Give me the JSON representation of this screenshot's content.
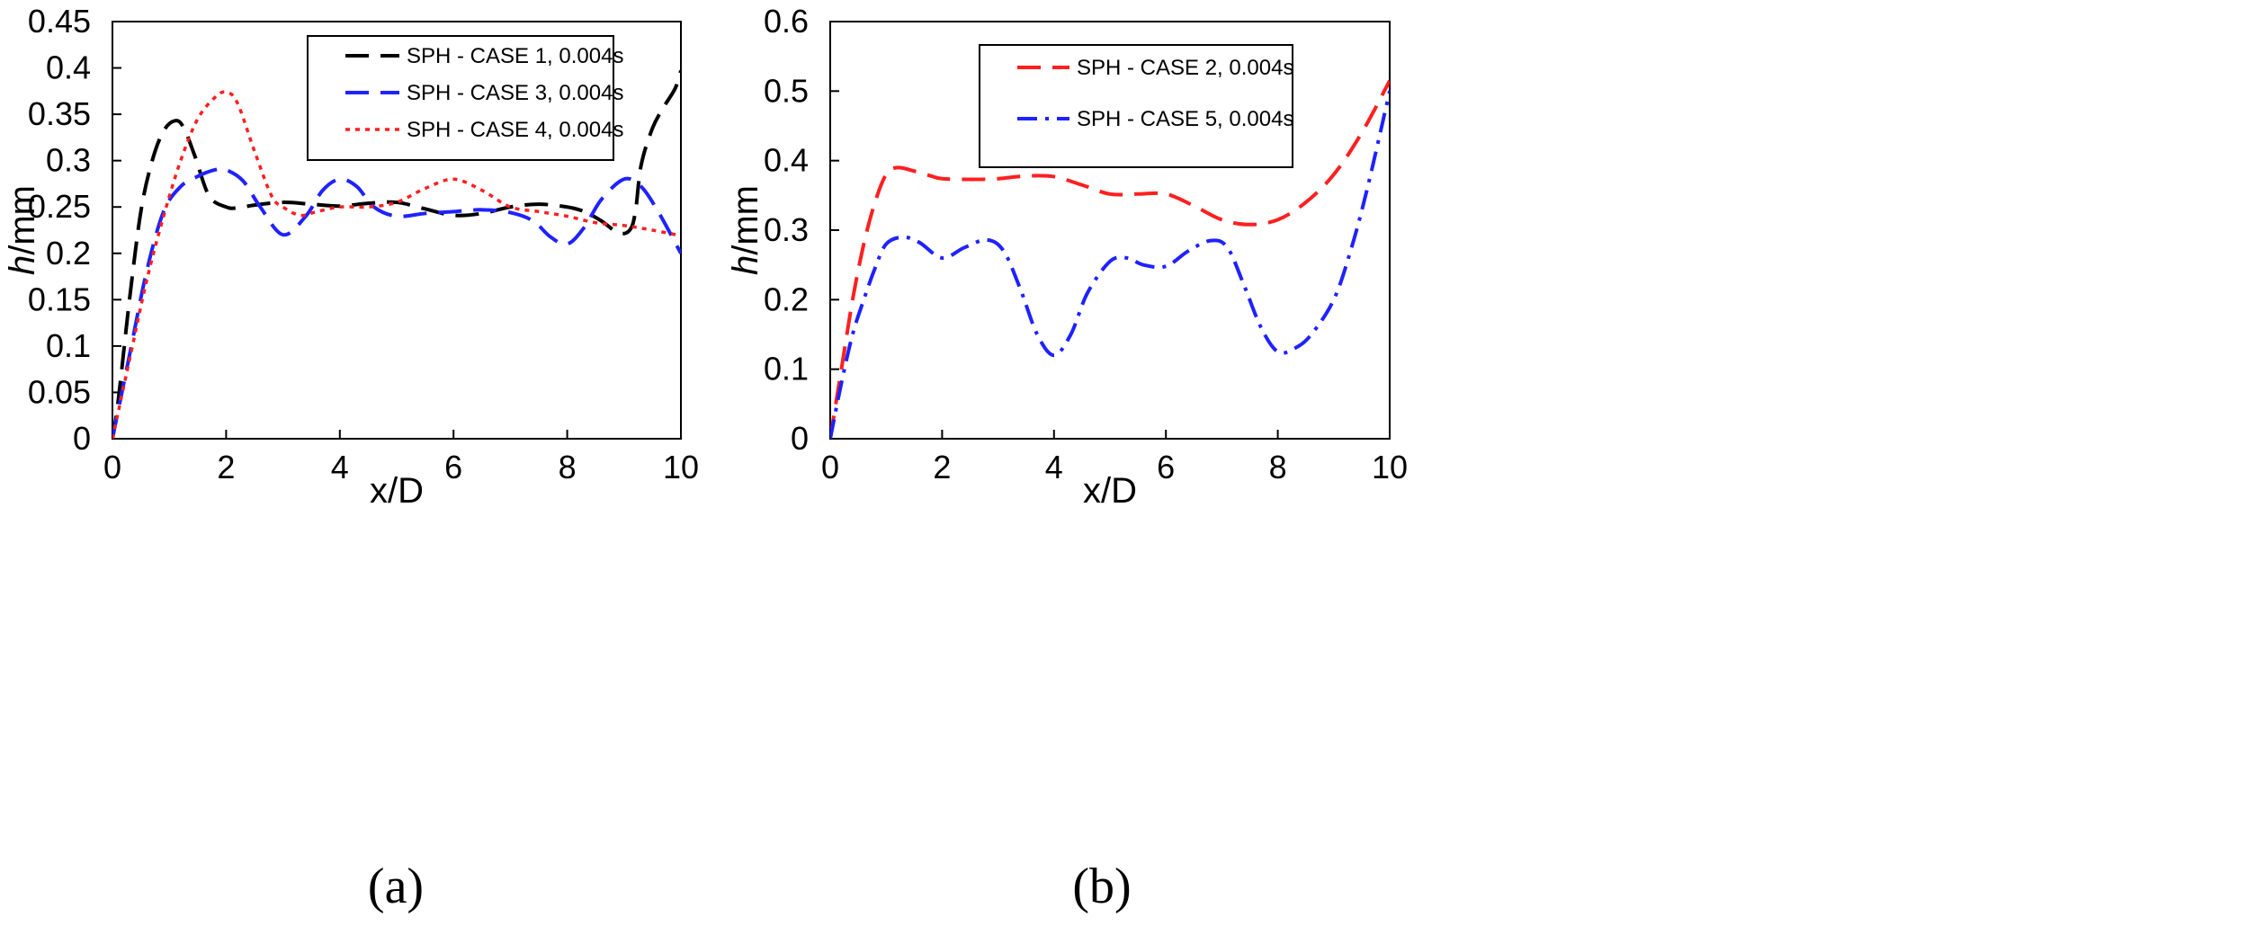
{
  "chart_data": [
    {
      "type": "line",
      "panel_label": "(a)",
      "xlabel": "x/D",
      "ylabel_italic": "h",
      "ylabel_unit": "/mm",
      "xlim": [
        0,
        10
      ],
      "ylim": [
        0,
        0.45
      ],
      "xticks": [
        0,
        2,
        4,
        6,
        8,
        10
      ],
      "xtick_labels": [
        "0",
        "2",
        "4",
        "6",
        "8",
        "10"
      ],
      "yticks": [
        0,
        0.05,
        0.1,
        0.15,
        0.2,
        0.25,
        0.3,
        0.35,
        0.4,
        0.45
      ],
      "ytick_labels": [
        "0",
        "0.05",
        "0.1",
        "0.15",
        "0.2",
        "0.25",
        "0.3",
        "0.35",
        "0.4",
        "0.45"
      ],
      "grid": false,
      "legend_position": "top-right",
      "series": [
        {
          "name": "SPH - CASE 1, 0.004s",
          "color": "#000000",
          "dash": "dashed",
          "x": [
            0,
            0.1,
            0.3,
            0.5,
            0.7,
            0.9,
            1.1,
            1.25,
            1.45,
            1.7,
            2.0,
            2.2,
            2.5,
            3.0,
            3.5,
            4.0,
            4.5,
            5.0,
            5.5,
            6.0,
            6.5,
            7.0,
            7.5,
            8.0,
            8.3,
            8.6,
            8.9,
            9.1,
            9.2,
            9.3,
            9.5,
            9.7,
            9.9,
            10.0
          ],
          "y": [
            0,
            0.04,
            0.15,
            0.245,
            0.3,
            0.332,
            0.343,
            0.336,
            0.305,
            0.262,
            0.25,
            0.249,
            0.252,
            0.255,
            0.253,
            0.251,
            0.254,
            0.255,
            0.248,
            0.241,
            0.243,
            0.25,
            0.253,
            0.25,
            0.245,
            0.235,
            0.222,
            0.225,
            0.245,
            0.295,
            0.335,
            0.358,
            0.378,
            0.397
          ]
        },
        {
          "name": "SPH - CASE 3, 0.004s",
          "color": "#1f22ff",
          "dash": "dashed",
          "x": [
            0,
            0.3,
            0.6,
            0.9,
            1.2,
            1.5,
            1.8,
            2.0,
            2.3,
            2.6,
            3.0,
            3.4,
            3.7,
            4.0,
            4.3,
            4.6,
            5.0,
            5.5,
            6.0,
            6.5,
            7.0,
            7.4,
            7.7,
            8.0,
            8.3,
            8.6,
            9.0,
            9.3,
            9.6,
            10.0
          ],
          "y": [
            0,
            0.09,
            0.18,
            0.245,
            0.272,
            0.283,
            0.29,
            0.29,
            0.278,
            0.25,
            0.22,
            0.24,
            0.268,
            0.28,
            0.272,
            0.25,
            0.24,
            0.243,
            0.245,
            0.247,
            0.244,
            0.235,
            0.218,
            0.21,
            0.228,
            0.258,
            0.28,
            0.272,
            0.245,
            0.2
          ]
        },
        {
          "name": "SPH - CASE 4, 0.004s",
          "color": "#ff1f1f",
          "dash": "dotted",
          "x": [
            0,
            0.3,
            0.6,
            0.9,
            1.2,
            1.5,
            1.8,
            2.0,
            2.2,
            2.5,
            2.8,
            3.0,
            3.3,
            3.6,
            4.0,
            4.5,
            5.0,
            5.5,
            6.0,
            6.5,
            7.0,
            7.5,
            8.0,
            8.5,
            9.0,
            9.5,
            10.0
          ],
          "y": [
            0,
            0.085,
            0.17,
            0.24,
            0.3,
            0.345,
            0.368,
            0.374,
            0.362,
            0.31,
            0.262,
            0.25,
            0.241,
            0.245,
            0.25,
            0.25,
            0.255,
            0.27,
            0.28,
            0.268,
            0.25,
            0.245,
            0.24,
            0.233,
            0.23,
            0.225,
            0.219
          ]
        }
      ]
    },
    {
      "type": "line",
      "panel_label": "(b)",
      "xlabel": "x/D",
      "ylabel_italic": "h",
      "ylabel_unit": "/mm",
      "xlim": [
        0,
        10
      ],
      "ylim": [
        0,
        0.6
      ],
      "xticks": [
        0,
        2,
        4,
        6,
        8,
        10
      ],
      "xtick_labels": [
        "0",
        "2",
        "4",
        "6",
        "8",
        "10"
      ],
      "yticks": [
        0,
        0.1,
        0.2,
        0.3,
        0.4,
        0.5,
        0.6
      ],
      "ytick_labels": [
        "0",
        "0.1",
        "0.2",
        "0.3",
        "0.4",
        "0.5",
        "0.6"
      ],
      "grid": false,
      "legend_position": "top-right",
      "series": [
        {
          "name": "SPH - CASE 2, 0.004s",
          "color": "#ff1f1f",
          "dash": "dashed",
          "x": [
            0,
            0.2,
            0.4,
            0.6,
            0.8,
            1.0,
            1.2,
            1.5,
            1.8,
            2.0,
            2.5,
            3.0,
            3.5,
            4.0,
            4.5,
            5.0,
            5.5,
            6.0,
            6.5,
            7.0,
            7.5,
            8.0,
            8.5,
            9.0,
            9.5,
            10.0
          ],
          "y": [
            0,
            0.1,
            0.2,
            0.28,
            0.34,
            0.38,
            0.39,
            0.385,
            0.378,
            0.374,
            0.373,
            0.374,
            0.378,
            0.377,
            0.365,
            0.352,
            0.352,
            0.352,
            0.335,
            0.315,
            0.308,
            0.315,
            0.34,
            0.38,
            0.44,
            0.515
          ]
        },
        {
          "name": "SPH - CASE 5, 0.004s",
          "color": "#1f22ff",
          "dash": "dashdot",
          "x": [
            0,
            0.2,
            0.4,
            0.6,
            0.8,
            1.0,
            1.3,
            1.6,
            2.0,
            2.4,
            2.8,
            3.1,
            3.4,
            3.7,
            4.0,
            4.3,
            4.6,
            5.0,
            5.3,
            5.6,
            6.0,
            6.4,
            6.8,
            7.1,
            7.4,
            7.7,
            8.0,
            8.3,
            8.6,
            9.0,
            9.3,
            9.6,
            10.0
          ],
          "y": [
            0,
            0.08,
            0.15,
            0.2,
            0.245,
            0.28,
            0.29,
            0.282,
            0.26,
            0.275,
            0.286,
            0.27,
            0.215,
            0.15,
            0.12,
            0.15,
            0.21,
            0.255,
            0.26,
            0.25,
            0.248,
            0.27,
            0.285,
            0.275,
            0.22,
            0.16,
            0.125,
            0.13,
            0.15,
            0.2,
            0.27,
            0.36,
            0.5
          ]
        }
      ]
    }
  ]
}
